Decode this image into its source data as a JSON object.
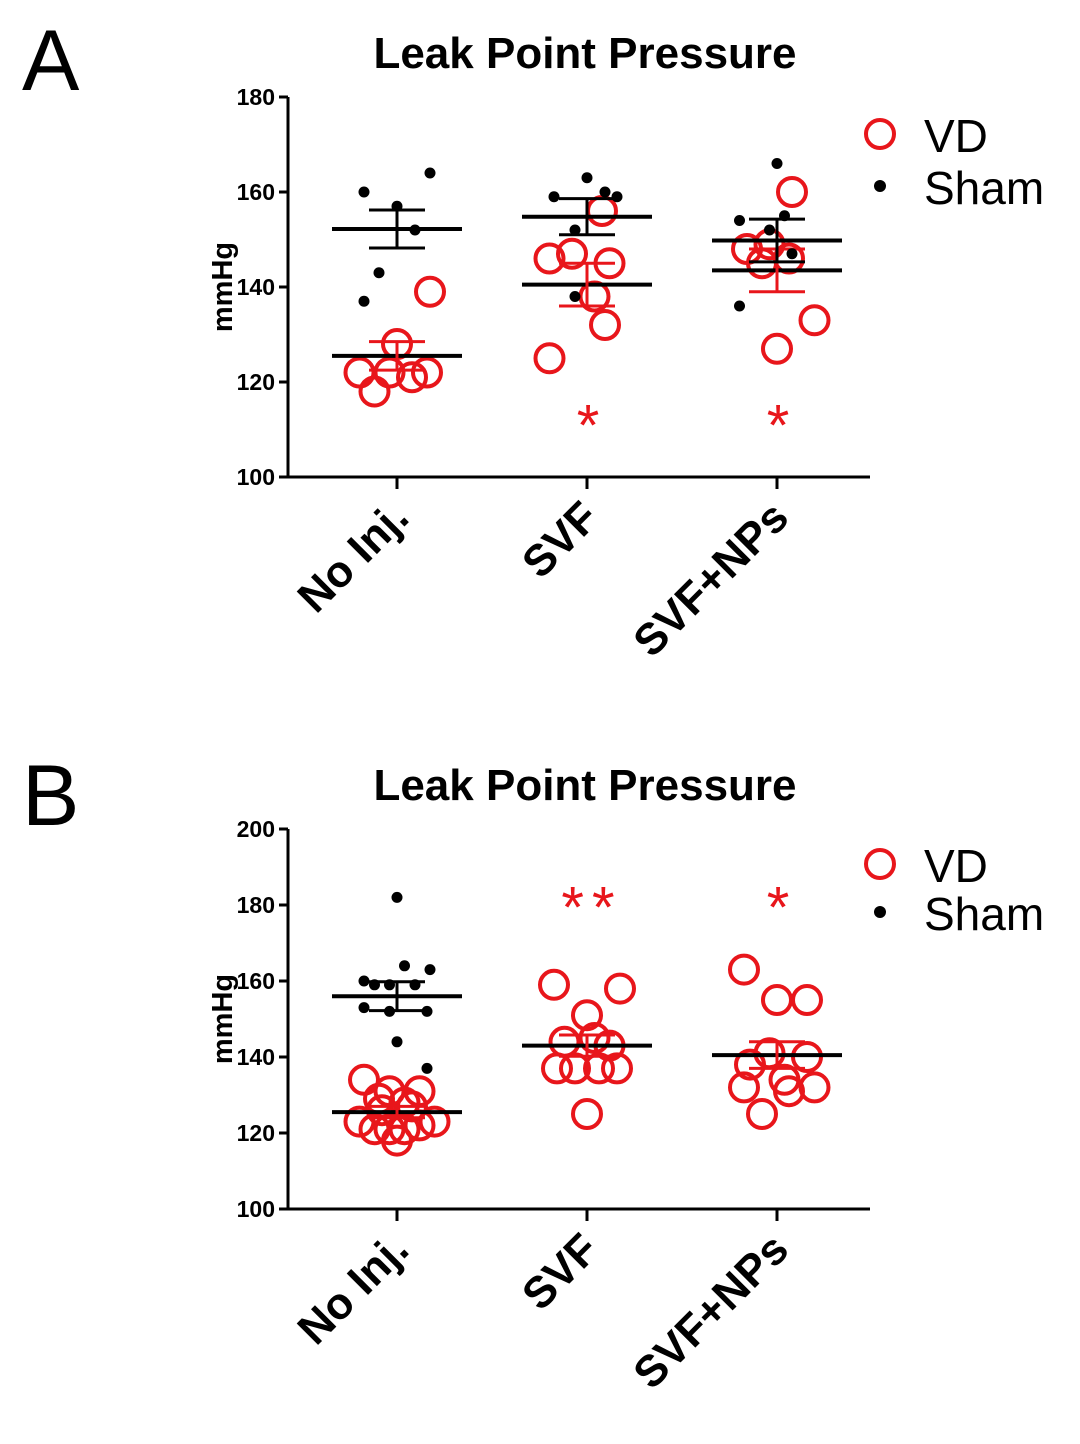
{
  "colors": {
    "vd": "#e8161b",
    "sham": "#000000",
    "axis": "#000000"
  },
  "chart_data": [
    {
      "panel": "A",
      "type": "scatter",
      "title": "Leak Point Pressure",
      "ylabel": "mmHg",
      "ylim": [
        100,
        180
      ],
      "yticks": [
        100,
        120,
        140,
        160,
        180
      ],
      "categories": [
        "No Inj.",
        "SVF",
        "SVF+NPs"
      ],
      "legend": {
        "position": "top-right",
        "entries": [
          "VD",
          "Sham"
        ]
      },
      "series": [
        {
          "name": "VD",
          "marker": "open-circle",
          "groups": [
            {
              "points": [
                [
                  -0.25,
                  122
                ],
                [
                  -0.15,
                  118
                ],
                [
                  -0.05,
                  122
                ],
                [
                  0,
                  128
                ],
                [
                  0.1,
                  121
                ],
                [
                  0.2,
                  122
                ],
                [
                  0.22,
                  139
                ]
              ],
              "mean": 125.5,
              "sem": 3.0
            },
            {
              "points": [
                [
                  -0.25,
                  146
                ],
                [
                  -0.1,
                  147
                ],
                [
                  -0.25,
                  125
                ],
                [
                  0.1,
                  156
                ],
                [
                  0.15,
                  145
                ],
                [
                  0.05,
                  138
                ],
                [
                  0.12,
                  132
                ]
              ],
              "mean": 140.5,
              "sem": 4.5
            },
            {
              "points": [
                [
                  -0.2,
                  148
                ],
                [
                  -0.05,
                  149
                ],
                [
                  0.08,
                  146
                ],
                [
                  0.1,
                  160
                ],
                [
                  -0.1,
                  145
                ],
                [
                  0.25,
                  133
                ],
                [
                  0,
                  127
                ]
              ],
              "mean": 143.5,
              "sem": 4.5
            }
          ]
        },
        {
          "name": "Sham",
          "marker": "filled-dot",
          "groups": [
            {
              "points": [
                [
                  -0.22,
                  160
                ],
                [
                  -0.22,
                  137
                ],
                [
                  -0.12,
                  143
                ],
                [
                  0,
                  157
                ],
                [
                  0.12,
                  152
                ],
                [
                  0.22,
                  164
                ]
              ],
              "mean": 152.2,
              "sem": 4.0
            },
            {
              "points": [
                [
                  -0.22,
                  159
                ],
                [
                  -0.08,
                  152
                ],
                [
                  0,
                  163
                ],
                [
                  0.12,
                  160
                ],
                [
                  0.2,
                  159
                ],
                [
                  -0.08,
                  138
                ]
              ],
              "mean": 154.8,
              "sem": 3.8
            },
            {
              "points": [
                [
                  -0.25,
                  154
                ],
                [
                  -0.25,
                  136
                ],
                [
                  0,
                  166
                ],
                [
                  -0.05,
                  152
                ],
                [
                  0.05,
                  155
                ],
                [
                  0.1,
                  147
                ]
              ],
              "mean": 149.8,
              "sem": 4.5
            }
          ]
        }
      ],
      "annotations": [
        {
          "category": "SVF",
          "text": "*",
          "y": 113
        },
        {
          "category": "SVF+NPs",
          "text": "*",
          "y": 113
        }
      ]
    },
    {
      "panel": "B",
      "type": "scatter",
      "title": "Leak Point Pressure",
      "ylabel": "mmHg",
      "ylim": [
        100,
        200
      ],
      "yticks": [
        100,
        120,
        140,
        160,
        180,
        200
      ],
      "categories": [
        "No Inj.",
        "SVF",
        "SVF+NPs"
      ],
      "legend": {
        "position": "top-right",
        "entries": [
          "VD",
          "Sham"
        ]
      },
      "series": [
        {
          "name": "VD",
          "marker": "open-circle",
          "groups": [
            {
              "points": [
                [
                  -0.22,
                  134
                ],
                [
                  -0.12,
                  129
                ],
                [
                  -0.05,
                  131
                ],
                [
                  0.05,
                  128
                ],
                [
                  0.15,
                  131
                ],
                [
                  -0.25,
                  123
                ],
                [
                  -0.15,
                  121
                ],
                [
                  -0.05,
                  121
                ],
                [
                  0.05,
                  121
                ],
                [
                  0.15,
                  122
                ],
                [
                  0.25,
                  123
                ],
                [
                  -0.1,
                  126
                ],
                [
                  0.1,
                  127
                ],
                [
                  0,
                  118
                ]
              ],
              "mean": 125.5,
              "sem": 1.5
            },
            {
              "points": [
                [
                  -0.22,
                  159
                ],
                [
                  0.22,
                  158
                ],
                [
                  0,
                  151
                ],
                [
                  -0.15,
                  144
                ],
                [
                  0.05,
                  145
                ],
                [
                  0.15,
                  143
                ],
                [
                  -0.2,
                  137
                ],
                [
                  -0.08,
                  137
                ],
                [
                  0.08,
                  137
                ],
                [
                  0.2,
                  137
                ],
                [
                  0,
                  125
                ]
              ],
              "mean": 143.0,
              "sem": 2.8
            },
            {
              "points": [
                [
                  -0.22,
                  163
                ],
                [
                  0,
                  155
                ],
                [
                  0.2,
                  155
                ],
                [
                  -0.18,
                  138
                ],
                [
                  -0.05,
                  141
                ],
                [
                  0.2,
                  140
                ],
                [
                  -0.22,
                  132
                ],
                [
                  0.08,
                  131
                ],
                [
                  0.25,
                  132
                ],
                [
                  -0.1,
                  125
                ],
                [
                  0.05,
                  134
                ]
              ],
              "mean": 140.5,
              "sem": 3.5
            }
          ]
        },
        {
          "name": "Sham",
          "marker": "filled-dot",
          "groups": [
            {
              "points": [
                [
                  0,
                  182
                ],
                [
                  -0.22,
                  160
                ],
                [
                  0.05,
                  164
                ],
                [
                  0.22,
                  163
                ],
                [
                  -0.15,
                  159
                ],
                [
                  -0.05,
                  159
                ],
                [
                  0.12,
                  159
                ],
                [
                  -0.22,
                  153
                ],
                [
                  -0.05,
                  152
                ],
                [
                  0.2,
                  152
                ],
                [
                  0,
                  144
                ],
                [
                  0.2,
                  137
                ]
              ],
              "mean": 156.0,
              "sem": 3.8
            }
          ]
        }
      ],
      "annotations": [
        {
          "category": "SVF",
          "text": "**",
          "y": 182
        },
        {
          "category": "SVF+NPs",
          "text": "*",
          "y": 182
        }
      ]
    }
  ]
}
